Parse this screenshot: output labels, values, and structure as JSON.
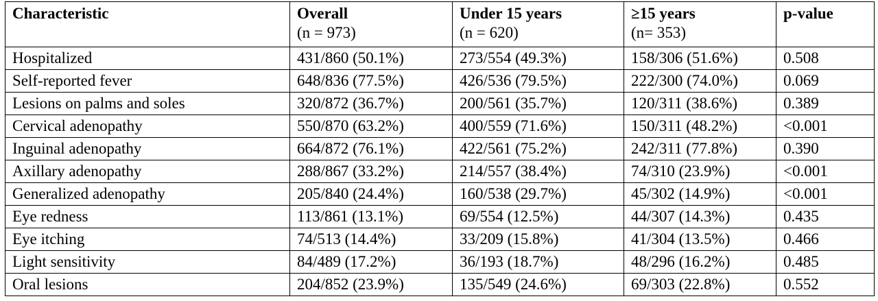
{
  "table": {
    "headers": [
      {
        "label": "Characteristic",
        "n": ""
      },
      {
        "label": "Overall",
        "n": "(n = 973)"
      },
      {
        "label": "Under 15 years",
        "n": "(n = 620)"
      },
      {
        "label": "≥15 years",
        "n": "(n= 353)"
      },
      {
        "label": "p-value",
        "n": ""
      }
    ],
    "rows": [
      [
        "Hospitalized",
        "431/860 (50.1%)",
        "273/554 (49.3%)",
        "158/306 (51.6%)",
        "0.508"
      ],
      [
        "Self-reported fever",
        "648/836 (77.5%)",
        "426/536 (79.5%)",
        "222/300 (74.0%)",
        "0.069"
      ],
      [
        "Lesions on palms and soles",
        "320/872 (36.7%)",
        "200/561 (35.7%)",
        "120/311 (38.6%)",
        "0.389"
      ],
      [
        "Cervical adenopathy",
        "550/870 (63.2%)",
        "400/559 (71.6%)",
        "150/311 (48.2%)",
        "<0.001"
      ],
      [
        "Inguinal adenopathy",
        "664/872 (76.1%)",
        "422/561 (75.2%)",
        "242/311 (77.8%)",
        "0.390"
      ],
      [
        "Axillary adenopathy",
        "288/867 (33.2%)",
        "214/557 (38.4%)",
        "74/310 (23.9%)",
        "<0.001"
      ],
      [
        "Generalized adenopathy",
        "205/840 (24.4%)",
        "160/538 (29.7%)",
        "45/302 (14.9%)",
        "<0.001"
      ],
      [
        "Eye redness",
        "113/861 (13.1%)",
        "69/554 (12.5%)",
        "44/307 (14.3%)",
        "0.435"
      ],
      [
        "Eye itching",
        "74/513 (14.4%)",
        "33/209 (15.8%)",
        "41/304 (13.5%)",
        "0.466"
      ],
      [
        "Light sensitivity",
        "84/489 (17.2%)",
        "36/193 (18.7%)",
        "48/296 (16.2%)",
        "0.485"
      ],
      [
        "Oral lesions",
        "204/852 (23.9%)",
        "135/549 (24.6%)",
        "69/303 (22.8%)",
        "0.552"
      ]
    ]
  }
}
